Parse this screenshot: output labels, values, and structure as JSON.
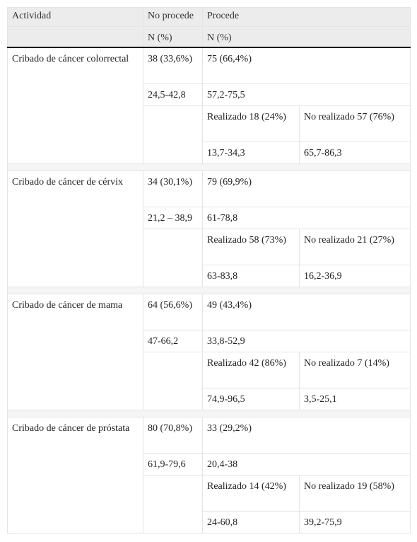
{
  "header": {
    "actividad": "Actividad",
    "no_procede": "No procede",
    "no_procede_unit": "N (%)",
    "procede": "Procede",
    "procede_unit": "N (%)"
  },
  "rows": [
    {
      "actividad": "Cribado de cáncer colorrectal",
      "no_procede": "38 (33,6%)",
      "no_procede_ic": "24,5-42,8",
      "procede": "75 (66,4%)",
      "procede_ic": "57,2-75,5",
      "realizado": "Realizado 18 (24%)",
      "no_realizado": "No realizado 57 (76%)",
      "realizado_ic": "13,7-34,3",
      "no_realizado_ic": "65,7-86,3"
    },
    {
      "actividad": "Cribado de cáncer de cérvix",
      "no_procede": "34 (30,1%)",
      "no_procede_ic": "21,2 – 38,9",
      "procede": "79 (69,9%)",
      "procede_ic": "61-78,8",
      "realizado": "Realizado 58 (73%)",
      "no_realizado": "No realizado 21 (27%)",
      "realizado_ic": "63-83,8",
      "no_realizado_ic": "16,2-36,9"
    },
    {
      "actividad": "Cribado de cáncer de mama",
      "no_procede": "64 (56,6%)",
      "no_procede_ic": "47-66,2",
      "procede": "49 (43,4%)",
      "procede_ic": "33,8-52,9",
      "realizado": "Realizado 42 (86%)",
      "no_realizado": "No realizado 7 (14%)",
      "realizado_ic": "74,9-96,5",
      "no_realizado_ic": "3,5-25,1"
    },
    {
      "actividad": "Cribado de cáncer de próstata",
      "no_procede": "80 (70,8%)",
      "no_procede_ic": "61,9-79,6",
      "procede": "33 (29,2%)",
      "procede_ic": "20,4-38",
      "realizado": "Realizado 14 (42%)",
      "no_realizado": "No realizado 19 (58%)",
      "realizado_ic": "24-60,8",
      "no_realizado_ic": "39,2-75,9"
    }
  ]
}
